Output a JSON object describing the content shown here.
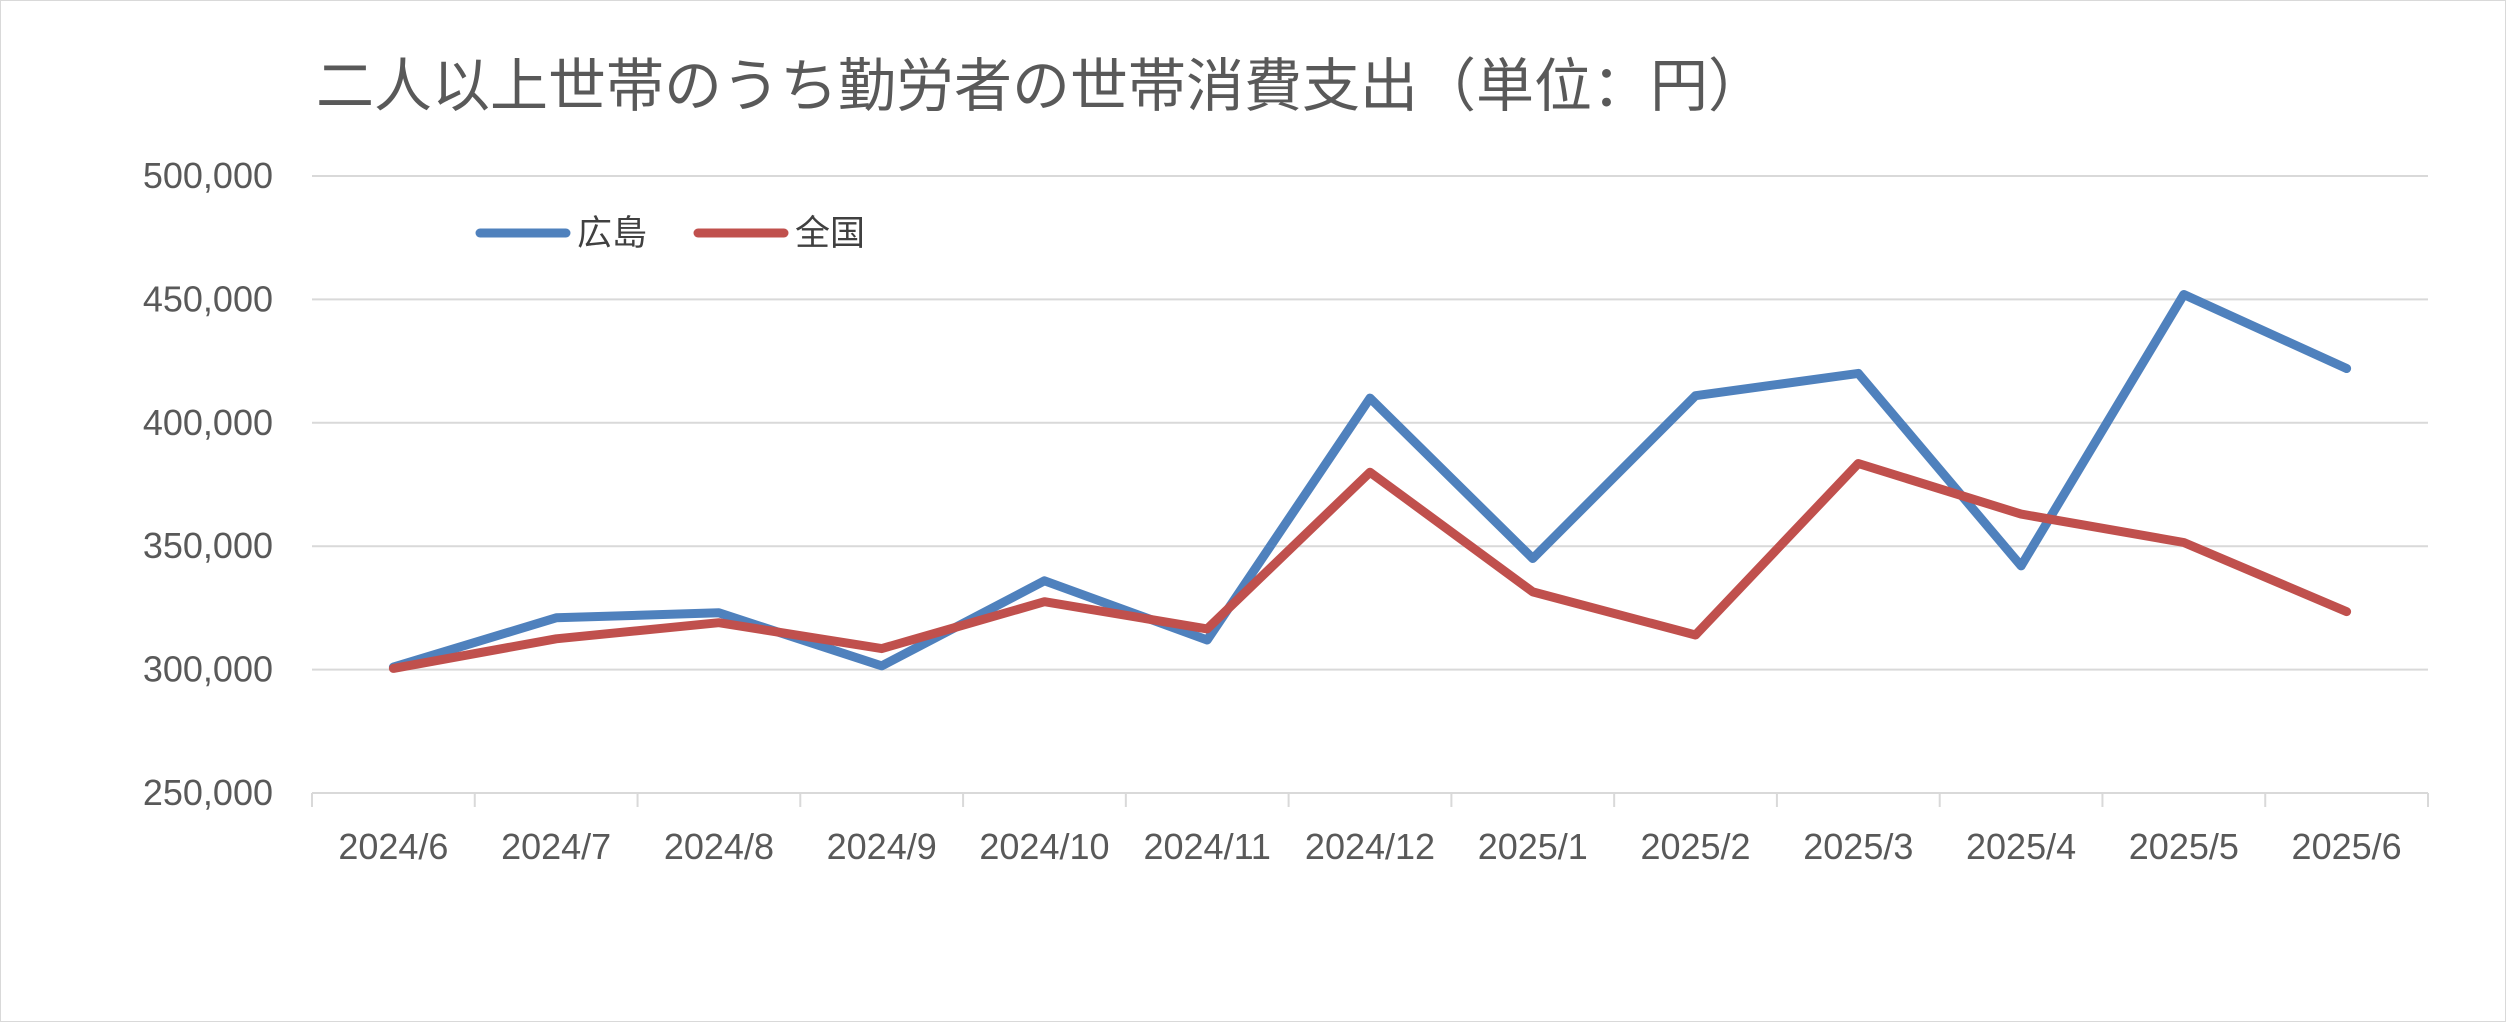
{
  "chart_data": {
    "type": "line",
    "title": "二人以上世帯のうち勤労者の世帯消費支出（単位：円）",
    "xlabel": "",
    "ylabel": "",
    "categories": [
      "2024/6",
      "2024/7",
      "2024/8",
      "2024/9",
      "2024/10",
      "2024/11",
      "2024/12",
      "2025/1",
      "2025/2",
      "2025/3",
      "2025/4",
      "2025/5",
      "2025/6"
    ],
    "y_ticks": [
      "250,000",
      "300,000",
      "350,000",
      "400,000",
      "450,000",
      "500,000"
    ],
    "ylim": [
      250000,
      500000
    ],
    "grid": true,
    "legend_position": "top-left",
    "series": [
      {
        "name": "広島",
        "color": "#4F81BD",
        "values": [
          301000,
          321000,
          323000,
          301500,
          336000,
          312000,
          410000,
          345000,
          411000,
          420000,
          342000,
          452000,
          422000
        ]
      },
      {
        "name": "全国",
        "color": "#C0504D",
        "values": [
          300500,
          312500,
          319000,
          308500,
          327500,
          316500,
          380000,
          331500,
          314000,
          383500,
          363000,
          351500,
          323500
        ]
      }
    ]
  }
}
